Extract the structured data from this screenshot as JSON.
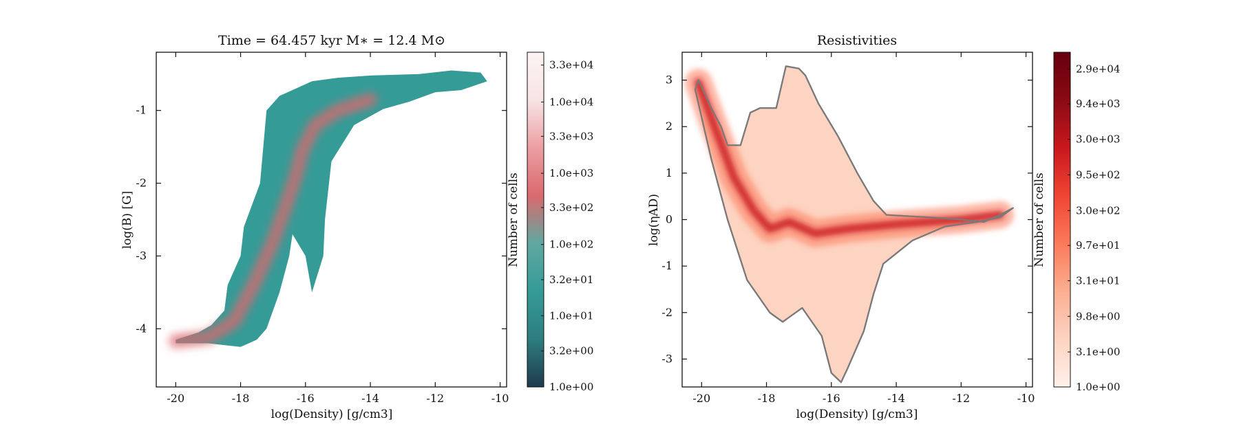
{
  "chart_data": [
    {
      "type": "heatmap",
      "title": "Time = 64.457 kyr    M∗ = 12.4 M⊙",
      "xlabel": "log(Density) [g/cm3]",
      "ylabel": "log(B) [G]",
      "xlim": [
        -20.6,
        -9.8
      ],
      "ylim": [
        -4.8,
        -0.2
      ],
      "xticks": [
        -20,
        -18,
        -16,
        -14,
        -12,
        -10
      ],
      "xtick_labels": [
        "-20",
        "-18",
        "-16",
        "-14",
        "-12",
        "-10"
      ],
      "yticks": [
        -4,
        -3,
        -2,
        -1
      ],
      "ytick_labels": [
        "-4",
        "-3",
        "-2",
        "-1"
      ],
      "colormap": [
        "#1f3a4d",
        "#2e7d7f",
        "#359b97",
        "#5fa8a0",
        "#d9696d",
        "#ec9fa2",
        "#f7e4e5",
        "#fdf3f3"
      ],
      "colorbar": {
        "label": "Number of cells",
        "scale": "log",
        "range": [
          1.0,
          50000
        ],
        "tick_values": [
          1.0,
          3.2,
          10.0,
          32.0,
          100.0,
          330.0,
          1000.0,
          3300.0,
          10000.0,
          33000.0
        ],
        "tick_labels": [
          "1.0e+00",
          "3.2e+00",
          "1.0e+01",
          "3.2e+01",
          "1.0e+02",
          "3.3e+02",
          "1.0e+03",
          "3.3e+03",
          "1.0e+04",
          "3.3e+04"
        ]
      },
      "outline": [
        [
          -20.0,
          -4.15
        ],
        [
          -19.3,
          -4.05
        ],
        [
          -18.9,
          -3.95
        ],
        [
          -18.5,
          -3.75
        ],
        [
          -18.4,
          -3.4
        ],
        [
          -18.0,
          -3.0
        ],
        [
          -17.9,
          -2.6
        ],
        [
          -17.4,
          -2.0
        ],
        [
          -17.3,
          -1.5
        ],
        [
          -17.2,
          -1.0
        ],
        [
          -16.8,
          -0.8
        ],
        [
          -15.8,
          -0.6
        ],
        [
          -15.0,
          -0.55
        ],
        [
          -14.0,
          -0.52
        ],
        [
          -12.5,
          -0.5
        ],
        [
          -11.5,
          -0.45
        ],
        [
          -10.6,
          -0.48
        ],
        [
          -10.4,
          -0.6
        ],
        [
          -11.2,
          -0.72
        ],
        [
          -12.0,
          -0.75
        ],
        [
          -12.8,
          -0.88
        ],
        [
          -13.6,
          -0.98
        ],
        [
          -14.5,
          -1.2
        ],
        [
          -15.2,
          -1.7
        ],
        [
          -15.4,
          -2.5
        ],
        [
          -15.45,
          -3.0
        ],
        [
          -15.8,
          -3.5
        ],
        [
          -16.0,
          -3.0
        ],
        [
          -16.4,
          -2.7
        ],
        [
          -16.5,
          -3.0
        ],
        [
          -16.8,
          -3.5
        ],
        [
          -17.2,
          -4.0
        ],
        [
          -17.5,
          -4.15
        ],
        [
          -18.0,
          -4.25
        ],
        [
          -19.0,
          -4.2
        ],
        [
          -20.0,
          -4.2
        ]
      ],
      "ridge": [
        [
          -20.0,
          -4.17
        ],
        [
          -19.0,
          -4.12
        ],
        [
          -18.2,
          -3.9
        ],
        [
          -17.6,
          -3.4
        ],
        [
          -17.0,
          -2.8
        ],
        [
          -16.6,
          -2.3
        ],
        [
          -16.3,
          -1.9
        ],
        [
          -16.1,
          -1.55
        ],
        [
          -15.7,
          -1.2
        ],
        [
          -15.0,
          -1.0
        ],
        [
          -14.0,
          -0.85
        ]
      ]
    },
    {
      "type": "heatmap",
      "title": "Resistivities",
      "xlabel": "log(Density) [g/cm3]",
      "ylabel": "log(ηAD)",
      "xlim": [
        -20.6,
        -9.8
      ],
      "ylim": [
        -3.6,
        3.6
      ],
      "xticks": [
        -20,
        -18,
        -16,
        -14,
        -12,
        -10
      ],
      "xtick_labels": [
        "-20",
        "-18",
        "-16",
        "-14",
        "-12",
        "-10"
      ],
      "yticks": [
        -3,
        -2,
        -1,
        0,
        1,
        2,
        3
      ],
      "ytick_labels": [
        "-3",
        "-2",
        "-1",
        "0",
        "1",
        "2",
        "3"
      ],
      "colormap": [
        "#fff0ea",
        "#fdd3c1",
        "#fcae92",
        "#fb7a5a",
        "#ef4533",
        "#c9181d",
        "#8a0a13",
        "#67000d"
      ],
      "contour_color": "#7a7a7a",
      "colorbar": {
        "label": "Number of cells",
        "scale": "log",
        "range": [
          1.0,
          50000
        ],
        "tick_values": [
          1.0,
          3.1,
          9.8,
          31.0,
          97.0,
          300.0,
          950.0,
          3000.0,
          9400.0,
          29000.0
        ],
        "tick_labels": [
          "1.0e+00",
          "3.1e+00",
          "9.8e+00",
          "3.1e+01",
          "9.7e+01",
          "3.0e+02",
          "9.5e+02",
          "3.0e+03",
          "9.4e+03",
          "2.9e+04"
        ]
      },
      "outline": [
        [
          -20.1,
          3.0
        ],
        [
          -19.7,
          2.4
        ],
        [
          -19.4,
          2.0
        ],
        [
          -19.2,
          1.6
        ],
        [
          -18.8,
          1.6
        ],
        [
          -18.5,
          2.3
        ],
        [
          -18.2,
          2.4
        ],
        [
          -17.7,
          2.4
        ],
        [
          -17.4,
          3.3
        ],
        [
          -17.0,
          3.25
        ],
        [
          -16.8,
          3.1
        ],
        [
          -16.4,
          2.5
        ],
        [
          -15.8,
          1.8
        ],
        [
          -15.2,
          1.0
        ],
        [
          -14.7,
          0.4
        ],
        [
          -14.3,
          0.1
        ],
        [
          -13.0,
          0.05
        ],
        [
          -12.0,
          0.0
        ],
        [
          -11.3,
          -0.05
        ],
        [
          -10.8,
          0.1
        ],
        [
          -10.4,
          0.25
        ],
        [
          -10.8,
          0.05
        ],
        [
          -11.5,
          -0.05
        ],
        [
          -12.5,
          -0.15
        ],
        [
          -13.5,
          -0.45
        ],
        [
          -14.4,
          -0.95
        ],
        [
          -14.7,
          -1.6
        ],
        [
          -15.0,
          -2.4
        ],
        [
          -15.5,
          -3.2
        ],
        [
          -15.7,
          -3.5
        ],
        [
          -16.0,
          -3.3
        ],
        [
          -16.3,
          -2.5
        ],
        [
          -16.9,
          -1.9
        ],
        [
          -17.5,
          -2.2
        ],
        [
          -17.9,
          -2.0
        ],
        [
          -18.6,
          -1.3
        ],
        [
          -19.2,
          0.0
        ],
        [
          -19.7,
          1.3
        ],
        [
          -20.2,
          2.8
        ]
      ],
      "ridge": [
        [
          -20.1,
          2.95
        ],
        [
          -19.6,
          2.0
        ],
        [
          -19.0,
          0.9
        ],
        [
          -18.4,
          0.2
        ],
        [
          -17.9,
          -0.2
        ],
        [
          -17.3,
          -0.05
        ],
        [
          -16.5,
          -0.3
        ],
        [
          -15.5,
          -0.2
        ],
        [
          -14.0,
          -0.1
        ],
        [
          -12.0,
          0.0
        ],
        [
          -10.8,
          0.1
        ]
      ]
    }
  ]
}
